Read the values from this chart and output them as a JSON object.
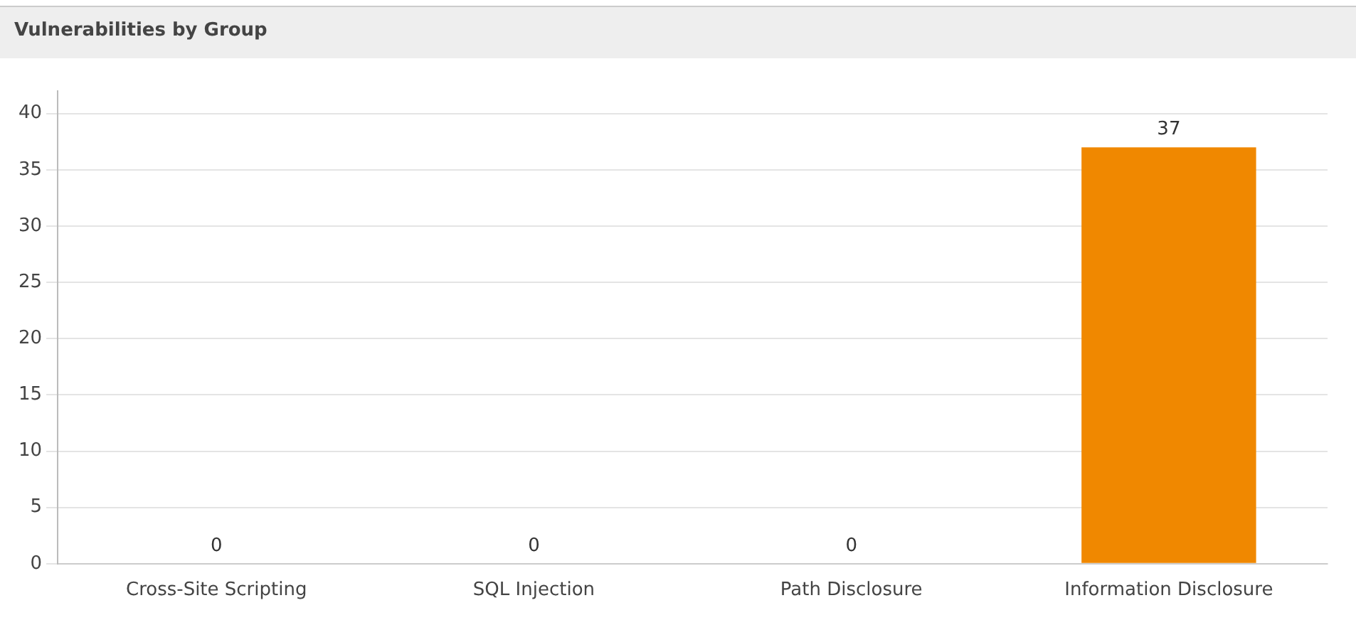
{
  "chart_data": {
    "type": "bar",
    "title": "Vulnerabilities by Group",
    "categories": [
      "Cross-Site Scripting",
      "SQL Injection",
      "Path Disclosure",
      "Information Disclosure"
    ],
    "values": [
      0,
      0,
      0,
      37
    ],
    "colors": [
      "#7a0808",
      "#9c1a08",
      "#a8480a",
      "#f08800"
    ],
    "ylim": [
      0,
      42
    ],
    "yticks": [
      0,
      5,
      10,
      15,
      20,
      25,
      30,
      35,
      40
    ],
    "grid": "y",
    "data_labels": true,
    "legend": false
  }
}
